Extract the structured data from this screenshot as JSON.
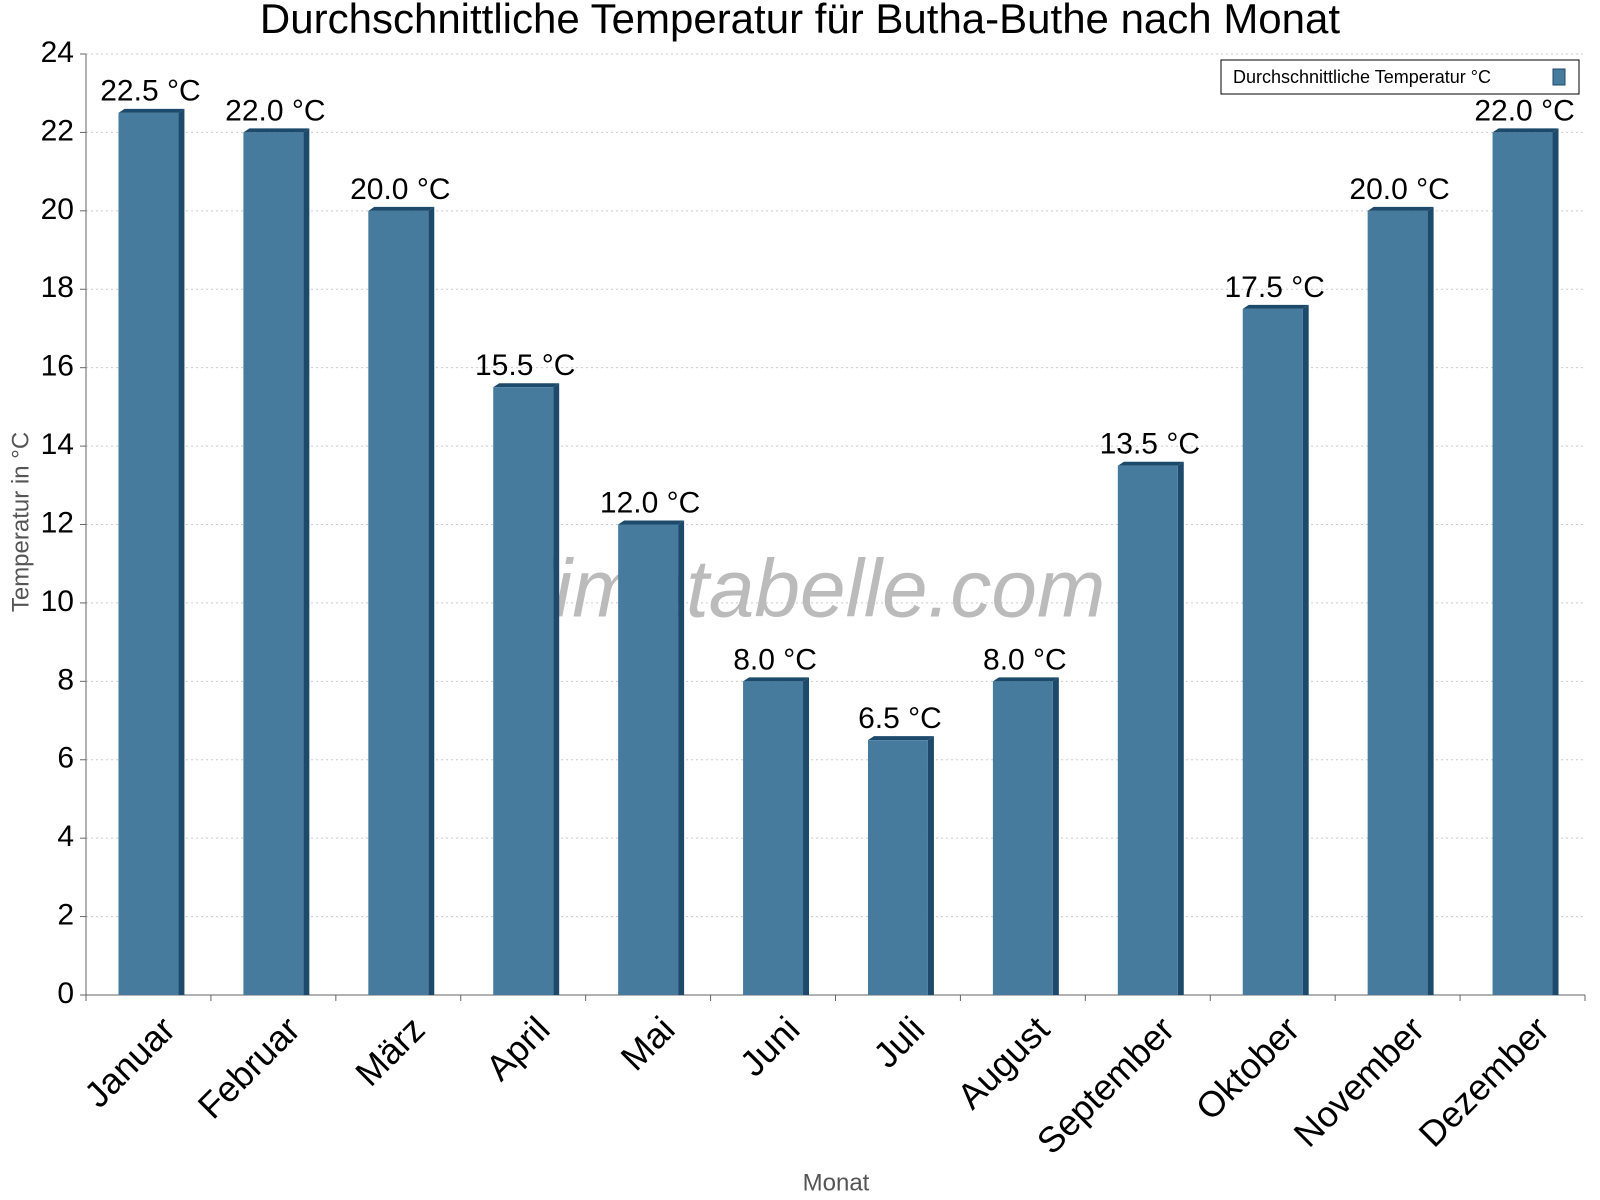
{
  "chart_data": {
    "type": "bar",
    "title": "Durchschnittliche Temperatur für Butha-Buthe nach Monat",
    "x_label": "Monat",
    "y_label": "Temperatur in °C",
    "watermark": "klimatabelle.com",
    "categories": [
      "Januar",
      "Februar",
      "März",
      "April",
      "Mai",
      "Juni",
      "Juli",
      "August",
      "September",
      "Oktober",
      "November",
      "Dezember"
    ],
    "series": [
      {
        "name": "Durchschnittliche Temperatur °C",
        "color": "#467b9e",
        "values": [
          22.5,
          22.0,
          20.0,
          15.5,
          12.0,
          8.0,
          6.5,
          8.0,
          13.5,
          17.5,
          20.0,
          22.0
        ],
        "value_labels": [
          "22.5 °C",
          "22.0 °C",
          "20.0 °C",
          "15.5 °C",
          "12.0 °C",
          "8.0 °C",
          "6.5 °C",
          "8.0 °C",
          "13.5 °C",
          "17.5 °C",
          "20.0 °C",
          "22.0 °C"
        ]
      }
    ],
    "ylim": [
      0,
      24
    ],
    "yticks": [
      0,
      2,
      4,
      6,
      8,
      10,
      12,
      14,
      16,
      18,
      20,
      22,
      24
    ],
    "grid": true,
    "legend": "top-right"
  }
}
